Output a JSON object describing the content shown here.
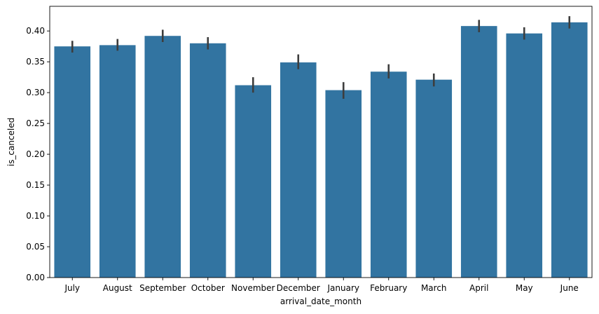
{
  "chart_data": {
    "type": "bar",
    "xlabel": "arrival_date_month",
    "ylabel": "is_canceled",
    "ylim": [
      0,
      0.44
    ],
    "yticks": [
      0.0,
      0.05,
      0.1,
      0.15,
      0.2,
      0.25,
      0.3,
      0.35,
      0.4
    ],
    "ytick_labels": [
      "0.00",
      "0.05",
      "0.10",
      "0.15",
      "0.20",
      "0.25",
      "0.30",
      "0.35",
      "0.40"
    ],
    "categories": [
      "July",
      "August",
      "September",
      "October",
      "November",
      "December",
      "January",
      "February",
      "March",
      "April",
      "May",
      "June"
    ],
    "values": [
      0.375,
      0.377,
      0.392,
      0.38,
      0.312,
      0.349,
      0.304,
      0.334,
      0.321,
      0.408,
      0.396,
      0.414
    ],
    "ci_low": [
      0.365,
      0.368,
      0.382,
      0.37,
      0.3,
      0.338,
      0.29,
      0.323,
      0.31,
      0.398,
      0.386,
      0.404
    ],
    "ci_high": [
      0.384,
      0.387,
      0.402,
      0.39,
      0.325,
      0.362,
      0.317,
      0.346,
      0.331,
      0.418,
      0.406,
      0.424
    ],
    "bar_color": "#3274a1",
    "errorbar_color": "#3d3d3d",
    "grid": false,
    "legend": "none"
  }
}
